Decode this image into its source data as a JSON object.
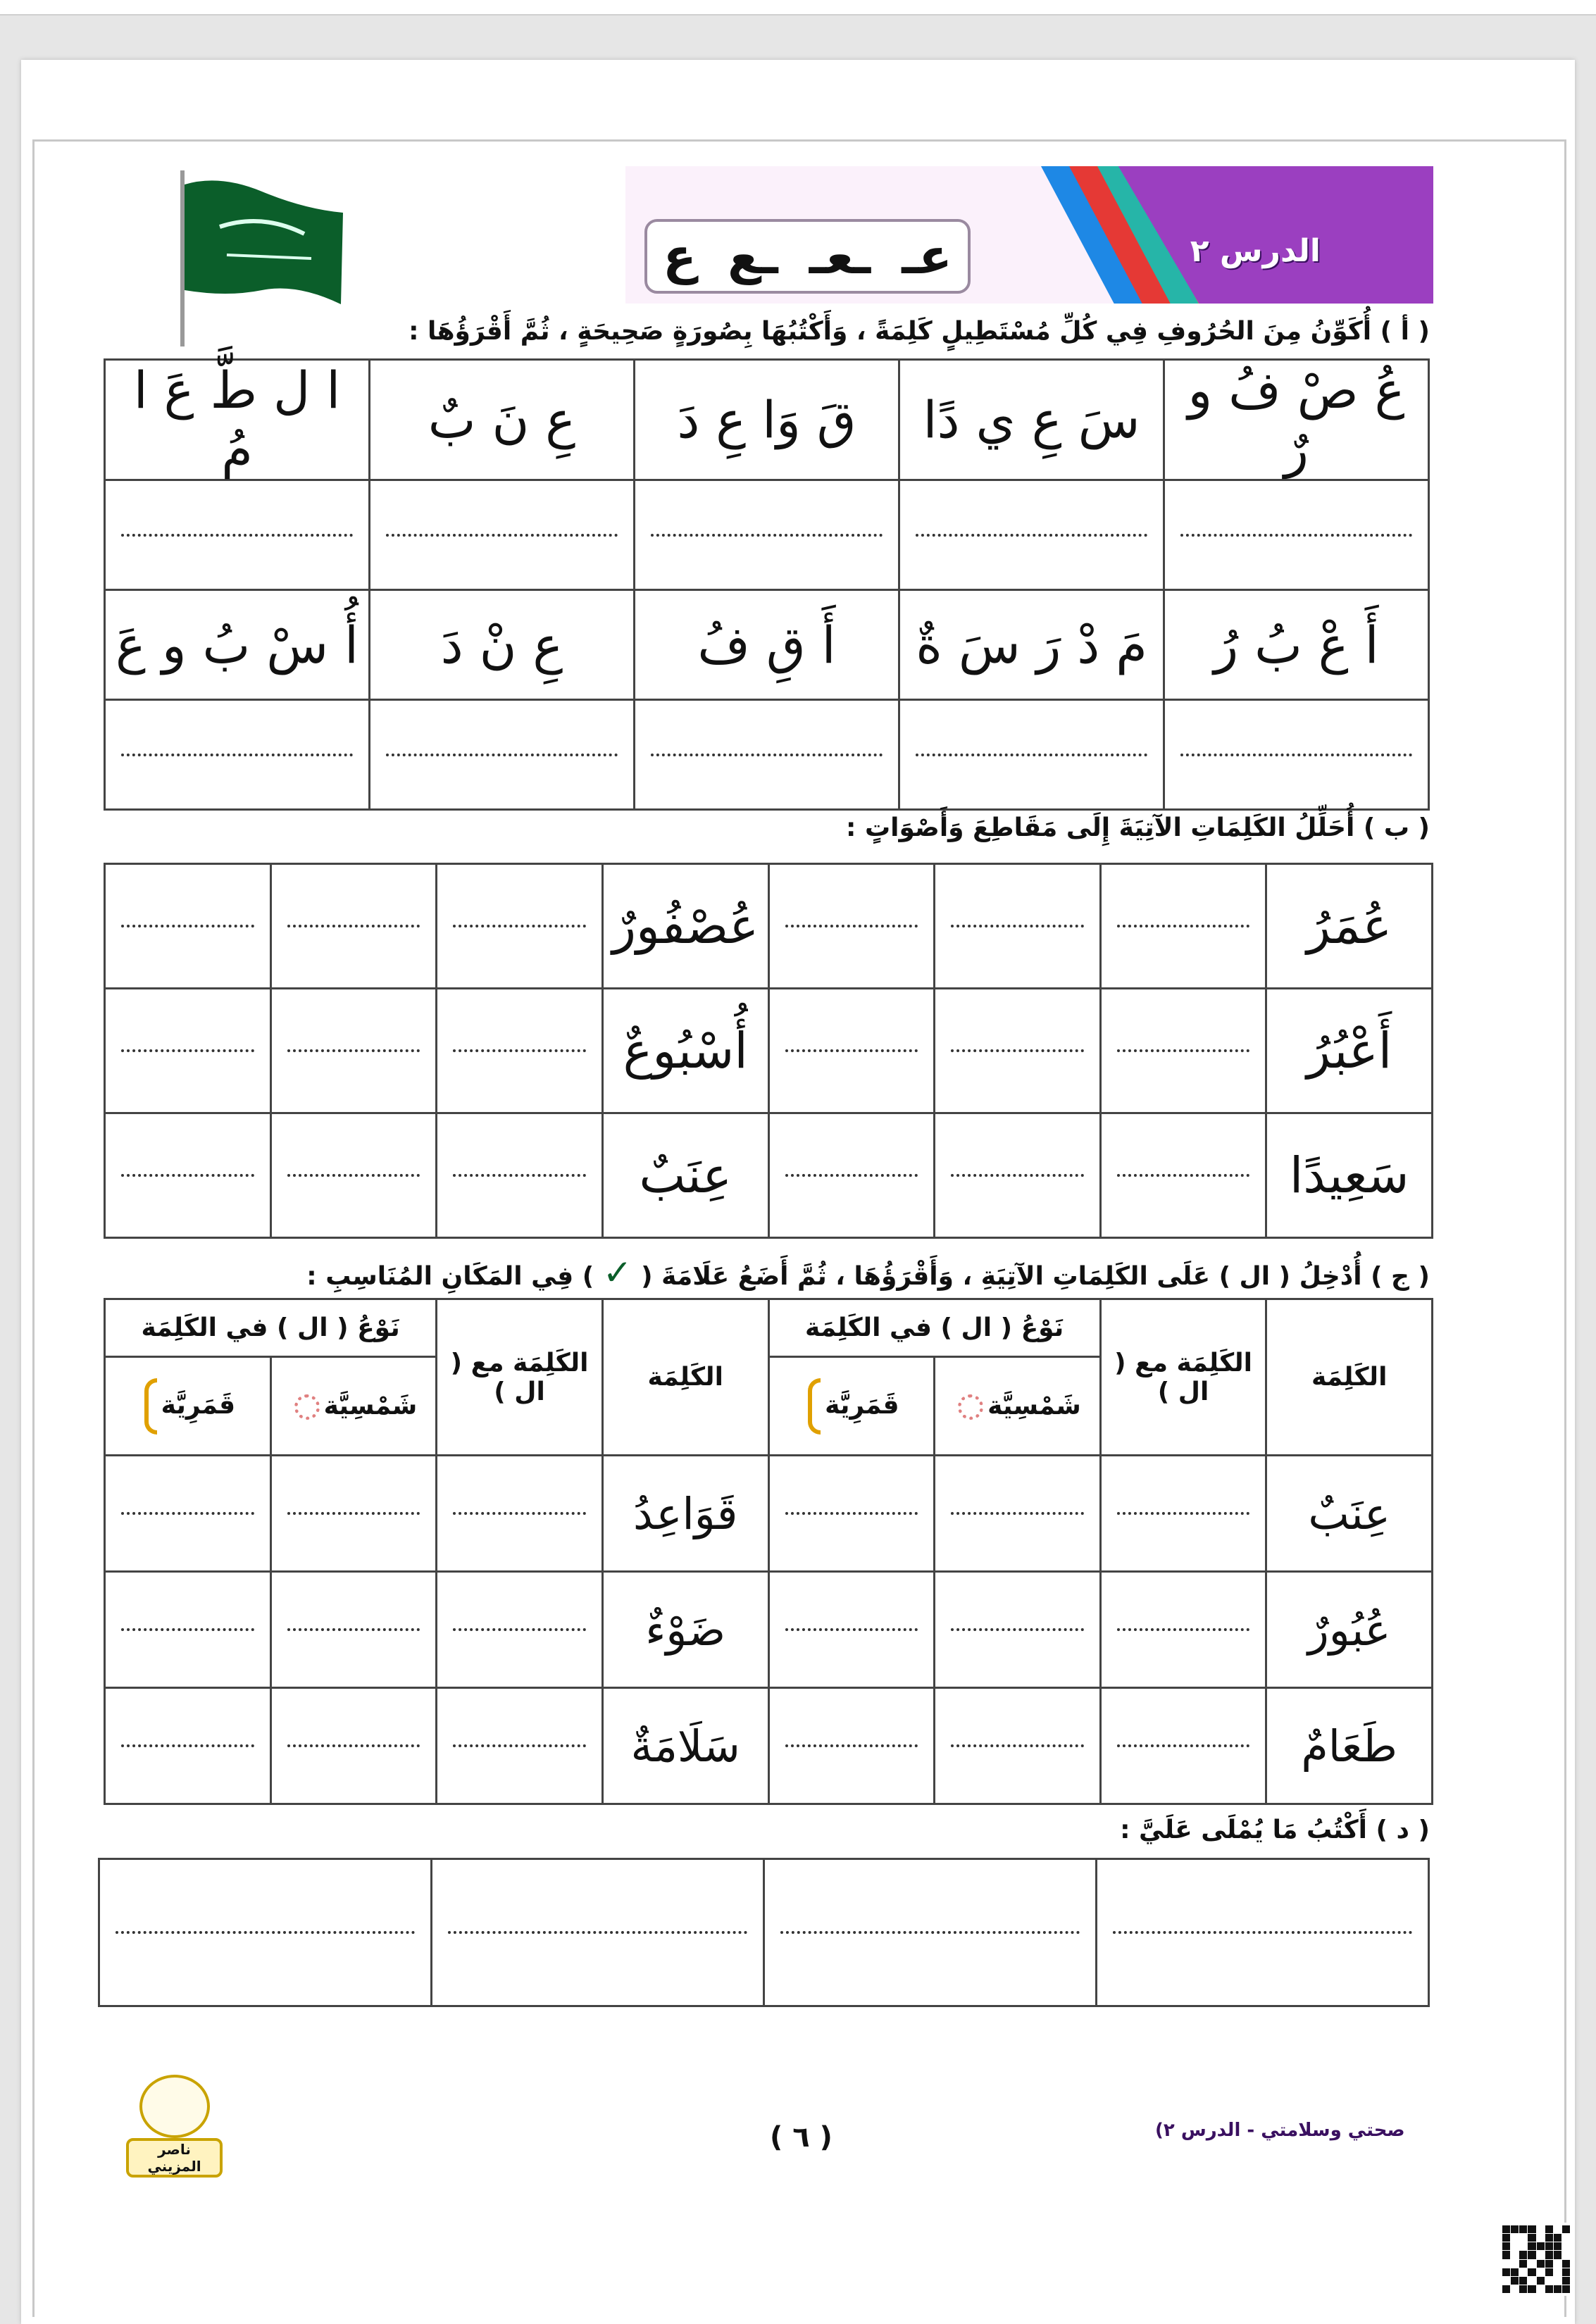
{
  "header": {
    "lesson_title": "الدرس ٢",
    "letter_forms": [
      "عـ",
      "ـعـ",
      "ـع",
      "ع"
    ],
    "stripe_colors": [
      "#1e88e5",
      "#e53935",
      "#26b5a8",
      "#ff9800",
      "#4a2080"
    ],
    "accent": "#9b3fc0"
  },
  "section_a": {
    "instruction": "( أ ) أُكَوِّنُ مِنَ الحُرُوفِ فِي كُلِّ مُسْتَطِيلٍ كَلِمَةً ، وَأَكْتُبُهَا بِصُورَةٍ صَحِيحَةٍ ، ثُمَّ أَقْرَؤُهَا :",
    "rows": [
      [
        "عُ صْ فُ و رٌ",
        "سَ عِ ي دًا",
        "قَ وَا عِ دَ",
        "عِ نَ بٌ",
        "ا ل طَّ عَ ا مُ"
      ],
      [
        "أَ عْ بُ رُ",
        "مَ دْ رَ سَ ةٌ",
        "أَ قِ فُ",
        "عِ نْ دَ",
        "أُ سْ بُ و عَ"
      ]
    ]
  },
  "section_b": {
    "instruction": "( ب ) أُحَلِّلُ الكَلِمَاتِ الآتِيَةَ إِلَى مَقَاطِعَ وَأَصْوَاتٍ :",
    "words_right": [
      "عُمَرُ",
      "أَعْبُرُ",
      "سَعِيدًا"
    ],
    "words_left": [
      "عُصْفُورٌ",
      "أُسْبُوعٌ",
      "عِنَبٌ"
    ]
  },
  "section_c": {
    "instruction_before": "( ج ) أُدْخِلُ ( ال ) عَلَى الكَلِمَاتِ الآتِيَةِ ، وَأَقْرَؤُهَا ، ثُمَّ أَضَعُ عَلَامَةَ (",
    "check": "✓",
    "instruction_after": ") فِي المَكَانِ المُنَاسِبِ :",
    "col_word": "الكَلِمَة",
    "col_word_with_al": "الكَلِمَة مع ( ال )",
    "col_type": "نَوْعُ ( ال ) في الكَلِمَة",
    "col_shamsiya": "شَمْسِيَّة",
    "col_qamariya": "قَمَرِيَّة",
    "words_right": [
      "عِنَبٌ",
      "عُبُورٌ",
      "طَعَامٌ"
    ],
    "words_left": [
      "قَوَاعِدُ",
      "ضَوْءٌ",
      "سَلَامَةٌ"
    ]
  },
  "section_d": {
    "instruction": "( د ) أَكْتُبُ مَا يُمْلَى عَلَيَّ :"
  },
  "footer": {
    "page_number": "( ٦ )",
    "book_title": "صحتي وسلامتي - الدرس ٢)",
    "logo_text": "ناصر المزيني"
  }
}
